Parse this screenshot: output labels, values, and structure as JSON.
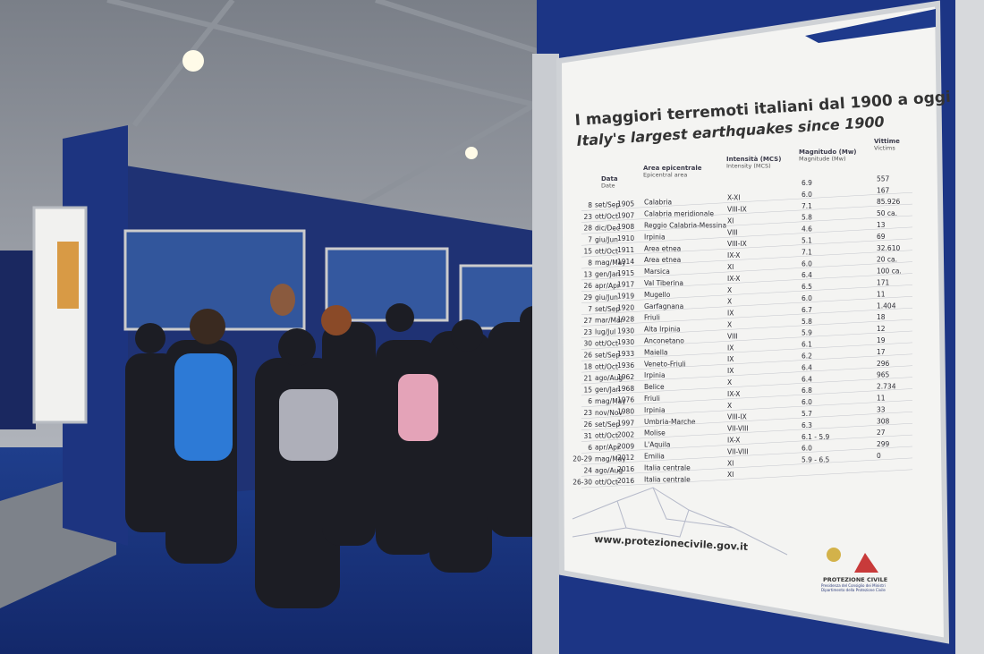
{
  "sign": {
    "title": "I maggiori terremoti italiani dal 1900 a oggi",
    "subtitle": "Italy's largest earthquakes since 1900",
    "headers": [
      {
        "it": "Data",
        "en": "Date"
      },
      {
        "it": "Area epicentrale",
        "en": "Epicentral area"
      },
      {
        "it": "Intensità (MCS)",
        "en": "Intensity (MCS)"
      },
      {
        "it": "Magnitudo (Mw)",
        "en": "Magnitude (Mw)"
      },
      {
        "it": "Vittime",
        "en": "Victims"
      }
    ],
    "rows": [
      {
        "day": "8",
        "month": "set/Sep",
        "year": "1905",
        "area": "Calabria",
        "intensity": "X-XI",
        "magnitude": "6.9",
        "victims": "557"
      },
      {
        "day": "23",
        "month": "ott/Oct",
        "year": "1907",
        "area": "Calabria meridionale",
        "intensity": "VIII-IX",
        "magnitude": "6.0",
        "victims": "167"
      },
      {
        "day": "28",
        "month": "dic/Dec",
        "year": "1908",
        "area": "Reggio Calabria-Messina",
        "intensity": "XI",
        "magnitude": "7.1",
        "victims": "85.926"
      },
      {
        "day": "7",
        "month": "giu/Jun",
        "year": "1910",
        "area": "Irpinia",
        "intensity": "VIII",
        "magnitude": "5.8",
        "victims": "50 ca."
      },
      {
        "day": "15",
        "month": "ott/Oct",
        "year": "1911",
        "area": "Area etnea",
        "intensity": "VIII-IX",
        "magnitude": "4.6",
        "victims": "13"
      },
      {
        "day": "8",
        "month": "mag/May",
        "year": "1914",
        "area": "Area etnea",
        "intensity": "IX-X",
        "magnitude": "5.1",
        "victims": "69"
      },
      {
        "day": "13",
        "month": "gen/Jan",
        "year": "1915",
        "area": "Marsica",
        "intensity": "XI",
        "magnitude": "7.1",
        "victims": "32.610"
      },
      {
        "day": "26",
        "month": "apr/Apr",
        "year": "1917",
        "area": "Val Tiberina",
        "intensity": "IX-X",
        "magnitude": "6.0",
        "victims": "20 ca."
      },
      {
        "day": "29",
        "month": "giu/Jun",
        "year": "1919",
        "area": "Mugello",
        "intensity": "X",
        "magnitude": "6.4",
        "victims": "100 ca."
      },
      {
        "day": "7",
        "month": "set/Sep",
        "year": "1920",
        "area": "Garfagnana",
        "intensity": "X",
        "magnitude": "6.5",
        "victims": "171"
      },
      {
        "day": "27",
        "month": "mar/Mar",
        "year": "1928",
        "area": "Friuli",
        "intensity": "IX",
        "magnitude": "6.0",
        "victims": "11"
      },
      {
        "day": "23",
        "month": "lug/Jul",
        "year": "1930",
        "area": "Alta Irpinia",
        "intensity": "X",
        "magnitude": "6.7",
        "victims": "1.404"
      },
      {
        "day": "30",
        "month": "ott/Oct",
        "year": "1930",
        "area": "Anconetano",
        "intensity": "VIII",
        "magnitude": "5.8",
        "victims": "18"
      },
      {
        "day": "26",
        "month": "set/Sep",
        "year": "1933",
        "area": "Maiella",
        "intensity": "IX",
        "magnitude": "5.9",
        "victims": "12"
      },
      {
        "day": "18",
        "month": "ott/Oct",
        "year": "1936",
        "area": "Veneto-Friuli",
        "intensity": "IX",
        "magnitude": "6.1",
        "victims": "19"
      },
      {
        "day": "21",
        "month": "ago/Aug",
        "year": "1962",
        "area": "Irpinia",
        "intensity": "IX",
        "magnitude": "6.2",
        "victims": "17"
      },
      {
        "day": "15",
        "month": "gen/Jan",
        "year": "1968",
        "area": "Belice",
        "intensity": "X",
        "magnitude": "6.4",
        "victims": "296"
      },
      {
        "day": "6",
        "month": "mag/May",
        "year": "1976",
        "area": "Friuli",
        "intensity": "IX-X",
        "magnitude": "6.4",
        "victims": "965"
      },
      {
        "day": "23",
        "month": "nov/Nov",
        "year": "1980",
        "area": "Irpinia",
        "intensity": "X",
        "magnitude": "6.8",
        "victims": "2.734"
      },
      {
        "day": "26",
        "month": "set/Sep",
        "year": "1997",
        "area": "Umbria-Marche",
        "intensity": "VIII-IX",
        "magnitude": "6.0",
        "victims": "11"
      },
      {
        "day": "31",
        "month": "ott/Oct",
        "year": "2002",
        "area": "Molise",
        "intensity": "VII-VIII",
        "magnitude": "5.7",
        "victims": "33"
      },
      {
        "day": "6",
        "month": "apr/Apr",
        "year": "2009",
        "area": "L'Aquila",
        "intensity": "IX-X",
        "magnitude": "6.3",
        "victims": "308"
      },
      {
        "day": "20-29",
        "month": "mag/May",
        "year": "2012",
        "area": "Emilia",
        "intensity": "VII-VIII",
        "magnitude": "6.1 - 5.9",
        "victims": "27"
      },
      {
        "day": "24",
        "month": "ago/Aug",
        "year": "2016",
        "area": "Italia centrale",
        "intensity": "XI",
        "magnitude": "6.0",
        "victims": "299"
      },
      {
        "day": "26-30",
        "month": "ott/Oct",
        "year": "2016",
        "area": "Italia centrale",
        "intensity": "XI",
        "magnitude": "5.9 - 6.5",
        "victims": "0"
      }
    ],
    "url": "www.protezionecivile.gov.it",
    "logo": {
      "name": "PROTEZIONE CIVILE",
      "subtitle": "Presidenza del Consiglio dei Ministri Dipartimento della Protezione Civile"
    }
  }
}
